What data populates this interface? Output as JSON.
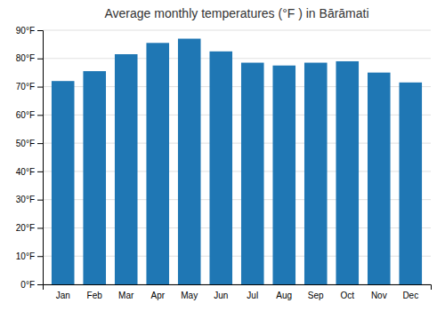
{
  "chart_data": {
    "type": "bar",
    "title": "Average monthly temperatures (°F ) in Bārāmati",
    "categories": [
      "Jan",
      "Feb",
      "Mar",
      "Apr",
      "May",
      "Jun",
      "Jul",
      "Aug",
      "Sep",
      "Oct",
      "Nov",
      "Dec"
    ],
    "values": [
      72,
      75.5,
      81.5,
      85.5,
      87,
      82.5,
      78.5,
      77.5,
      78.5,
      79,
      75,
      71.5
    ],
    "ylim": [
      0,
      90
    ],
    "yticks": [
      {
        "value": 0,
        "label": "0°F"
      },
      {
        "value": 10,
        "label": "10°F"
      },
      {
        "value": 20,
        "label": "20°F"
      },
      {
        "value": 30,
        "label": "30°F"
      },
      {
        "value": 40,
        "label": "40°F"
      },
      {
        "value": 50,
        "label": "50°F"
      },
      {
        "value": 60,
        "label": "60°F"
      },
      {
        "value": 70,
        "label": "70°F"
      },
      {
        "value": 80,
        "label": "80°F"
      },
      {
        "value": 90,
        "label": "90°F"
      }
    ],
    "grid": true
  }
}
